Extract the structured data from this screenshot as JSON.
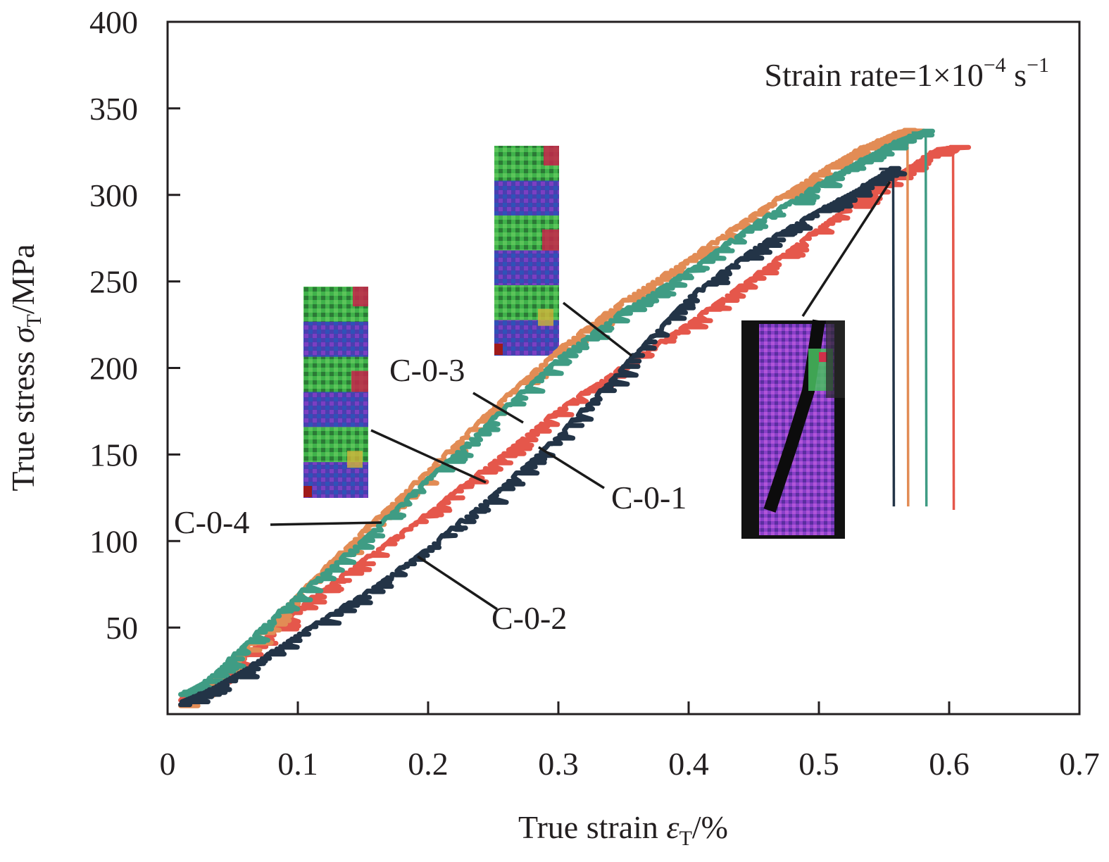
{
  "chart_data": {
    "type": "line",
    "title": "",
    "xlabel": "True strain εT/%",
    "xlabel_parts": {
      "main": "True strain ",
      "symbol": "ε",
      "subscript": "T",
      "unit": "/%"
    },
    "ylabel": "True stress σT/MPa",
    "ylabel_parts": {
      "main": "True stress ",
      "symbol": "σ",
      "subscript": "T",
      "unit": "/MPa"
    },
    "xlim": [
      0,
      0.7
    ],
    "ylim": [
      0,
      400
    ],
    "x_ticks": [
      0,
      0.1,
      0.2,
      0.3,
      0.4,
      0.5,
      0.6,
      0.7
    ],
    "x_tick_labels": [
      "0",
      "0.1",
      "0.2",
      "0.3",
      "0.4",
      "0.5",
      "0.6",
      "0.7"
    ],
    "y_ticks": [
      50,
      100,
      150,
      200,
      250,
      300,
      350,
      400
    ],
    "y_tick_labels": [
      "50",
      "100",
      "150",
      "200",
      "250",
      "300",
      "350",
      "400"
    ],
    "grid": false,
    "legend": "none (series labeled by leader-line annotations)",
    "annotation": {
      "prefix": "Strain rate=1×10",
      "exp1": "−4",
      "mid": " s",
      "exp2": "−1",
      "placement": "top-right"
    },
    "series": [
      {
        "name": "C-0-1",
        "color": "#e5574b",
        "x": [
          0.01,
          0.03,
          0.06,
          0.1,
          0.15,
          0.2,
          0.25,
          0.3,
          0.35,
          0.4,
          0.45,
          0.5,
          0.53,
          0.55,
          0.57,
          0.59,
          0.603
        ],
        "y": [
          8,
          15,
          33,
          60,
          88,
          115,
          145,
          175,
          200,
          225,
          252,
          280,
          296,
          306,
          315,
          325,
          326
        ],
        "fracture_strain": 0.603,
        "drop_to": 118
      },
      {
        "name": "C-0-2",
        "color": "#233447",
        "x": [
          0.01,
          0.03,
          0.06,
          0.1,
          0.15,
          0.2,
          0.25,
          0.3,
          0.35,
          0.4,
          0.45,
          0.5,
          0.53,
          0.557
        ],
        "y": [
          6,
          12,
          25,
          45,
          68,
          95,
          126,
          160,
          200,
          240,
          268,
          290,
          302,
          315
        ],
        "fracture_strain": 0.557,
        "drop_to": 120
      },
      {
        "name": "C-0-3",
        "color": "#3f9c84",
        "x": [
          0.01,
          0.03,
          0.06,
          0.1,
          0.15,
          0.2,
          0.25,
          0.3,
          0.35,
          0.4,
          0.45,
          0.5,
          0.53,
          0.56,
          0.582
        ],
        "y": [
          10,
          18,
          40,
          68,
          100,
          135,
          170,
          205,
          232,
          255,
          282,
          305,
          318,
          330,
          336
        ],
        "fracture_strain": 0.582,
        "drop_to": 120
      },
      {
        "name": "C-0-4",
        "color": "#e28c55",
        "x": [
          0.01,
          0.03,
          0.06,
          0.1,
          0.15,
          0.2,
          0.25,
          0.3,
          0.35,
          0.4,
          0.45,
          0.5,
          0.53,
          0.56,
          0.568
        ],
        "y": [
          4,
          15,
          38,
          68,
          105,
          140,
          176,
          210,
          238,
          262,
          288,
          312,
          325,
          335,
          336
        ],
        "fracture_strain": 0.568,
        "drop_to": 120
      }
    ],
    "series_labels": [
      {
        "text": "C-0-1",
        "series": "C-0-1",
        "label_at": [
          0.34,
          143
        ],
        "points_to": [
          0.285,
          157
        ]
      },
      {
        "text": "C-0-2",
        "series": "C-0-2",
        "label_at": [
          0.245,
          55
        ],
        "points_to": [
          0.19,
          92
        ]
      },
      {
        "text": "C-0-3",
        "series": "C-0-3",
        "label_at": [
          0.21,
          196
        ],
        "points_to": [
          0.27,
          168
        ]
      },
      {
        "text": "C-0-4",
        "series": "C-0-4",
        "label_at": [
          0.0,
          110
        ],
        "points_to": [
          0.165,
          111
        ]
      }
    ],
    "inset_images": [
      {
        "name": "dic-strain-map-early",
        "description": "DIC strain field with periodic blue/green/red bands",
        "points_to": [
          0.245,
          133
        ]
      },
      {
        "name": "dic-strain-map-mid",
        "description": "DIC strain field with periodic bands",
        "points_to": [
          0.355,
          212
        ]
      },
      {
        "name": "dic-strain-map-fracture",
        "description": "DIC strain field showing diagonal fracture crack in purple field",
        "points_to": [
          0.55,
          312
        ]
      }
    ]
  }
}
